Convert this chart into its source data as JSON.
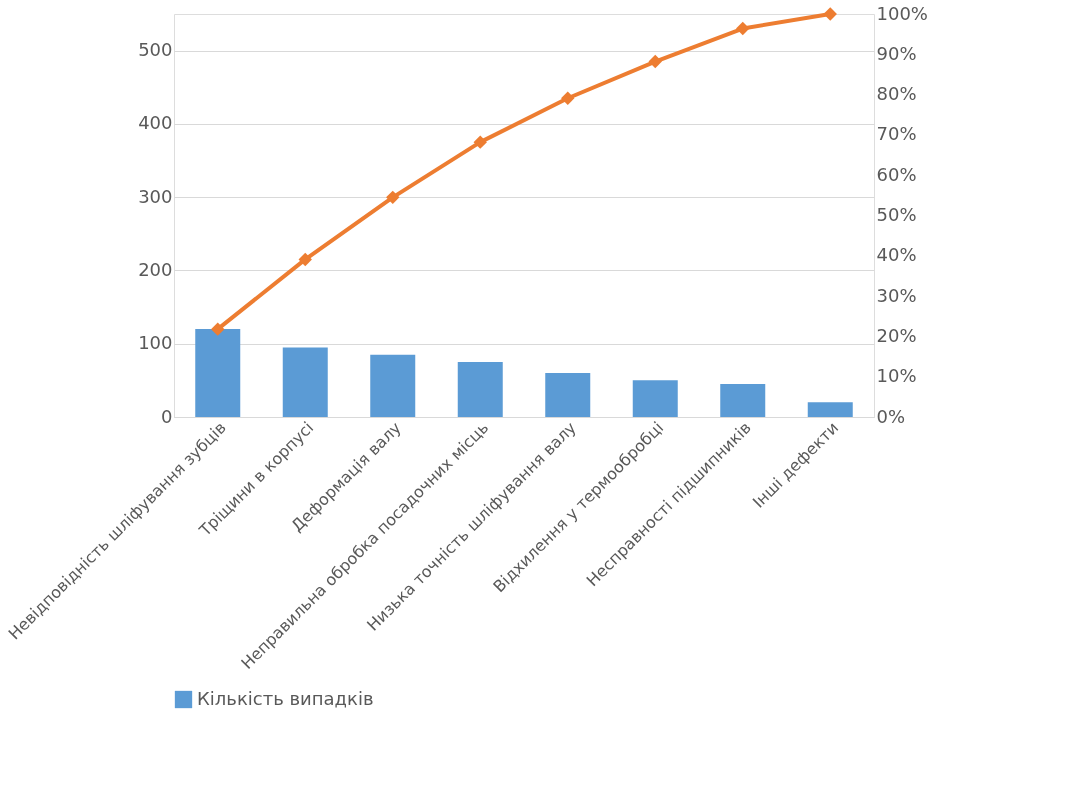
{
  "chart_data": {
    "type": "bar",
    "categories": [
      "Невідповідність шліфування зубців",
      "Тріщини в корпусі",
      "Деформація валу",
      "Неправильна обробка посадочних місць",
      "Низька точність шліфування валу",
      "Відхилення у термообробці",
      "Несправності підшипників",
      "Інші дефекти"
    ],
    "series": [
      {
        "name": "Кількість випадків",
        "color": "#5b9bd5",
        "values": [
          120,
          95,
          85,
          75,
          60,
          50,
          45,
          20
        ]
      },
      {
        "type": "line",
        "axis": "y2",
        "color": "#ed7d31",
        "marker": "diamond",
        "values": [
          21.8,
          39.1,
          54.5,
          68.2,
          79.1,
          88.2,
          96.4,
          100
        ]
      }
    ],
    "ylim": [
      0,
      550
    ],
    "yticks": [
      0,
      100,
      200,
      300,
      400,
      500
    ],
    "y2lim": [
      0,
      100
    ],
    "y2ticks": [
      {
        "value": 0,
        "label": "0%"
      },
      {
        "value": 10,
        "label": "10%"
      },
      {
        "value": 20,
        "label": "20%"
      },
      {
        "value": 30,
        "label": "30%"
      },
      {
        "value": 40,
        "label": "40%"
      },
      {
        "value": 50,
        "label": "50%"
      },
      {
        "value": 60,
        "label": "60%"
      },
      {
        "value": 70,
        "label": "70%"
      },
      {
        "value": 80,
        "label": "80%"
      },
      {
        "value": 90,
        "label": "90%"
      },
      {
        "value": 100,
        "label": "100%"
      }
    ],
    "grid": "y",
    "legend": "bottom"
  }
}
